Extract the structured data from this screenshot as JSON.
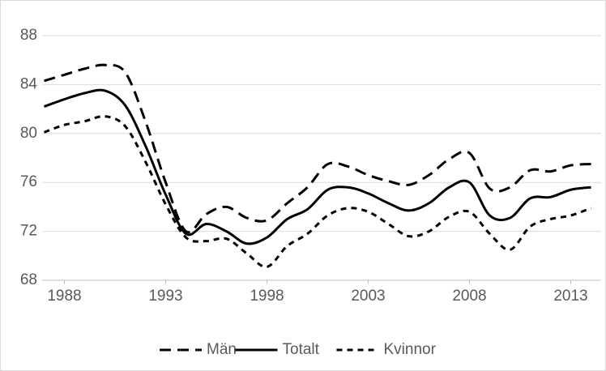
{
  "chart_data": {
    "type": "line",
    "x": [
      1987,
      1988,
      1989,
      1990,
      1991,
      1992,
      1993,
      1994,
      1995,
      1996,
      1997,
      1998,
      1999,
      2000,
      2001,
      2002,
      2003,
      2004,
      2005,
      2006,
      2007,
      2008,
      2009,
      2010,
      2011,
      2012,
      2013,
      2014
    ],
    "series": [
      {
        "name": "Män",
        "color": "#000000",
        "dash": "long",
        "values": [
          84.3,
          84.8,
          85.3,
          85.6,
          85,
          81,
          76,
          72,
          73.4,
          74,
          73.1,
          72.9,
          74.3,
          75.6,
          77.5,
          77.3,
          76.6,
          76.1,
          75.8,
          76.6,
          77.9,
          78.4,
          75.5,
          75.6,
          77,
          76.9,
          77.4,
          77.5
        ]
      },
      {
        "name": "Totalt",
        "color": "#000000",
        "dash": "solid",
        "values": [
          82.2,
          82.8,
          83.3,
          83.5,
          82.3,
          79,
          75,
          71.8,
          72.6,
          72,
          71,
          71.5,
          73,
          73.8,
          75.4,
          75.6,
          75.1,
          74.3,
          73.7,
          74.3,
          75.6,
          76,
          73.3,
          73.1,
          74.7,
          74.8,
          75.4,
          75.6
        ]
      },
      {
        "name": "Kvinnor",
        "color": "#000000",
        "dash": "short",
        "values": [
          80.1,
          80.7,
          81,
          81.4,
          80.6,
          77.7,
          74.2,
          71.5,
          71.2,
          71.4,
          70.2,
          69.1,
          70.8,
          71.8,
          73.3,
          73.9,
          73.6,
          72.6,
          71.6,
          72,
          73.2,
          73.6,
          71.8,
          70.5,
          72.4,
          73,
          73.3,
          73.9
        ]
      }
    ],
    "xlim": [
      1986.9,
      2014.5
    ],
    "xticks": [
      1988,
      1993,
      1998,
      2003,
      2008,
      2013
    ],
    "ylim": [
      68,
      88
    ],
    "yticks": [
      68,
      72,
      76,
      80,
      84,
      88
    ],
    "grid": true,
    "legend": "bottom"
  }
}
